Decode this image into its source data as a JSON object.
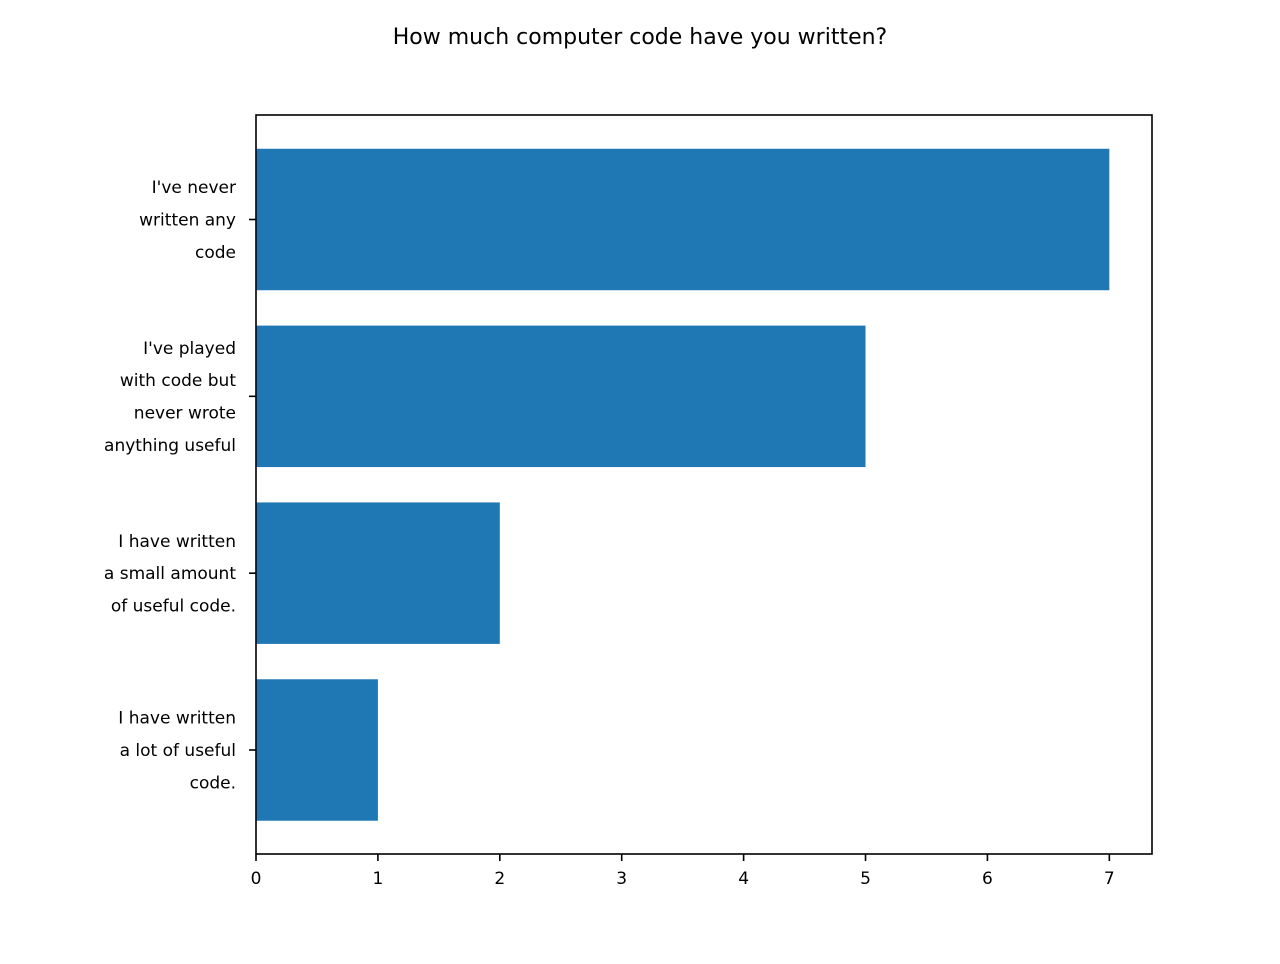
{
  "chart_data": {
    "type": "bar",
    "orientation": "horizontal",
    "title": "How much computer code have you written?",
    "xlabel": "",
    "ylabel": "",
    "categories": [
      [
        "I've never",
        "written any",
        "code"
      ],
      [
        "I've played",
        "with code but",
        "never wrote",
        "anything useful"
      ],
      [
        "I have written",
        "a small amount",
        "of useful code."
      ],
      [
        "I have written",
        "a lot of useful",
        "code."
      ]
    ],
    "values": [
      7,
      5,
      2,
      1
    ],
    "xlim": [
      0,
      7.35
    ],
    "xticks": [
      "0",
      "1",
      "2",
      "3",
      "4",
      "5",
      "6",
      "7"
    ],
    "grid": false,
    "bar_color": "#1f77b4"
  }
}
